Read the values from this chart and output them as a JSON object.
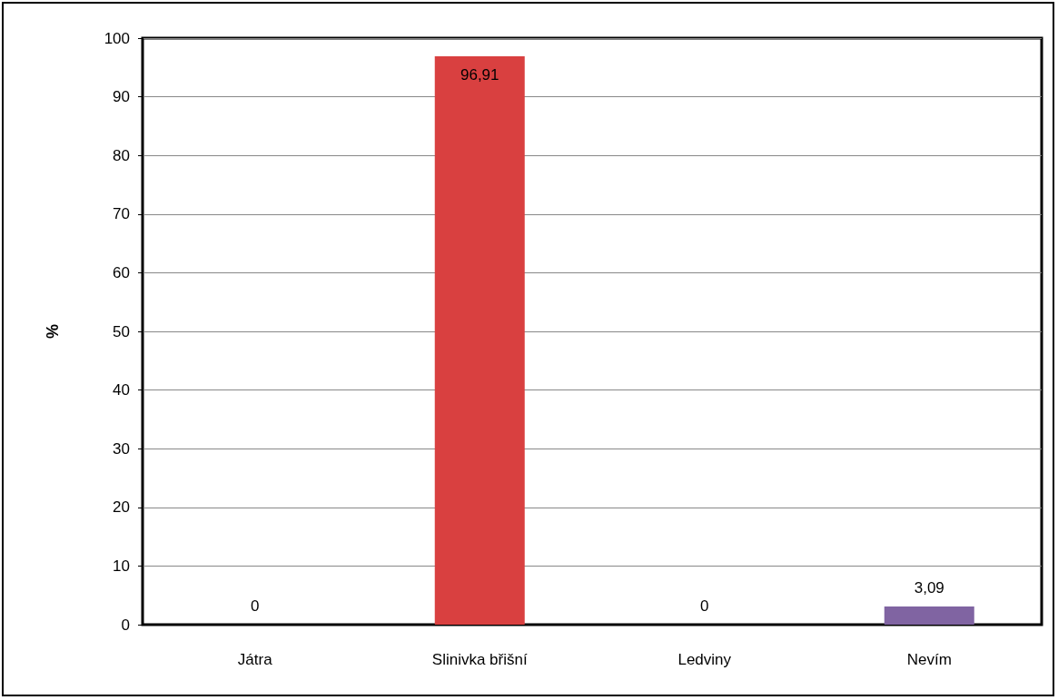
{
  "chart_data": {
    "type": "bar",
    "ylabel": "%",
    "categories": [
      "Játra",
      "Slinivka břišní",
      "Ledviny",
      "Nevím"
    ],
    "values": [
      0,
      96.91,
      0,
      3.09
    ],
    "colors": [
      "#4f81bd",
      "#d94040",
      "#9bbb59",
      "#8064a2"
    ],
    "value_labels": [
      "0",
      "96,91",
      "0",
      "3,09"
    ],
    "ylim": [
      0,
      100
    ],
    "yticks": [
      0,
      10,
      20,
      30,
      40,
      50,
      60,
      70,
      80,
      90,
      100
    ],
    "grid": "y"
  }
}
